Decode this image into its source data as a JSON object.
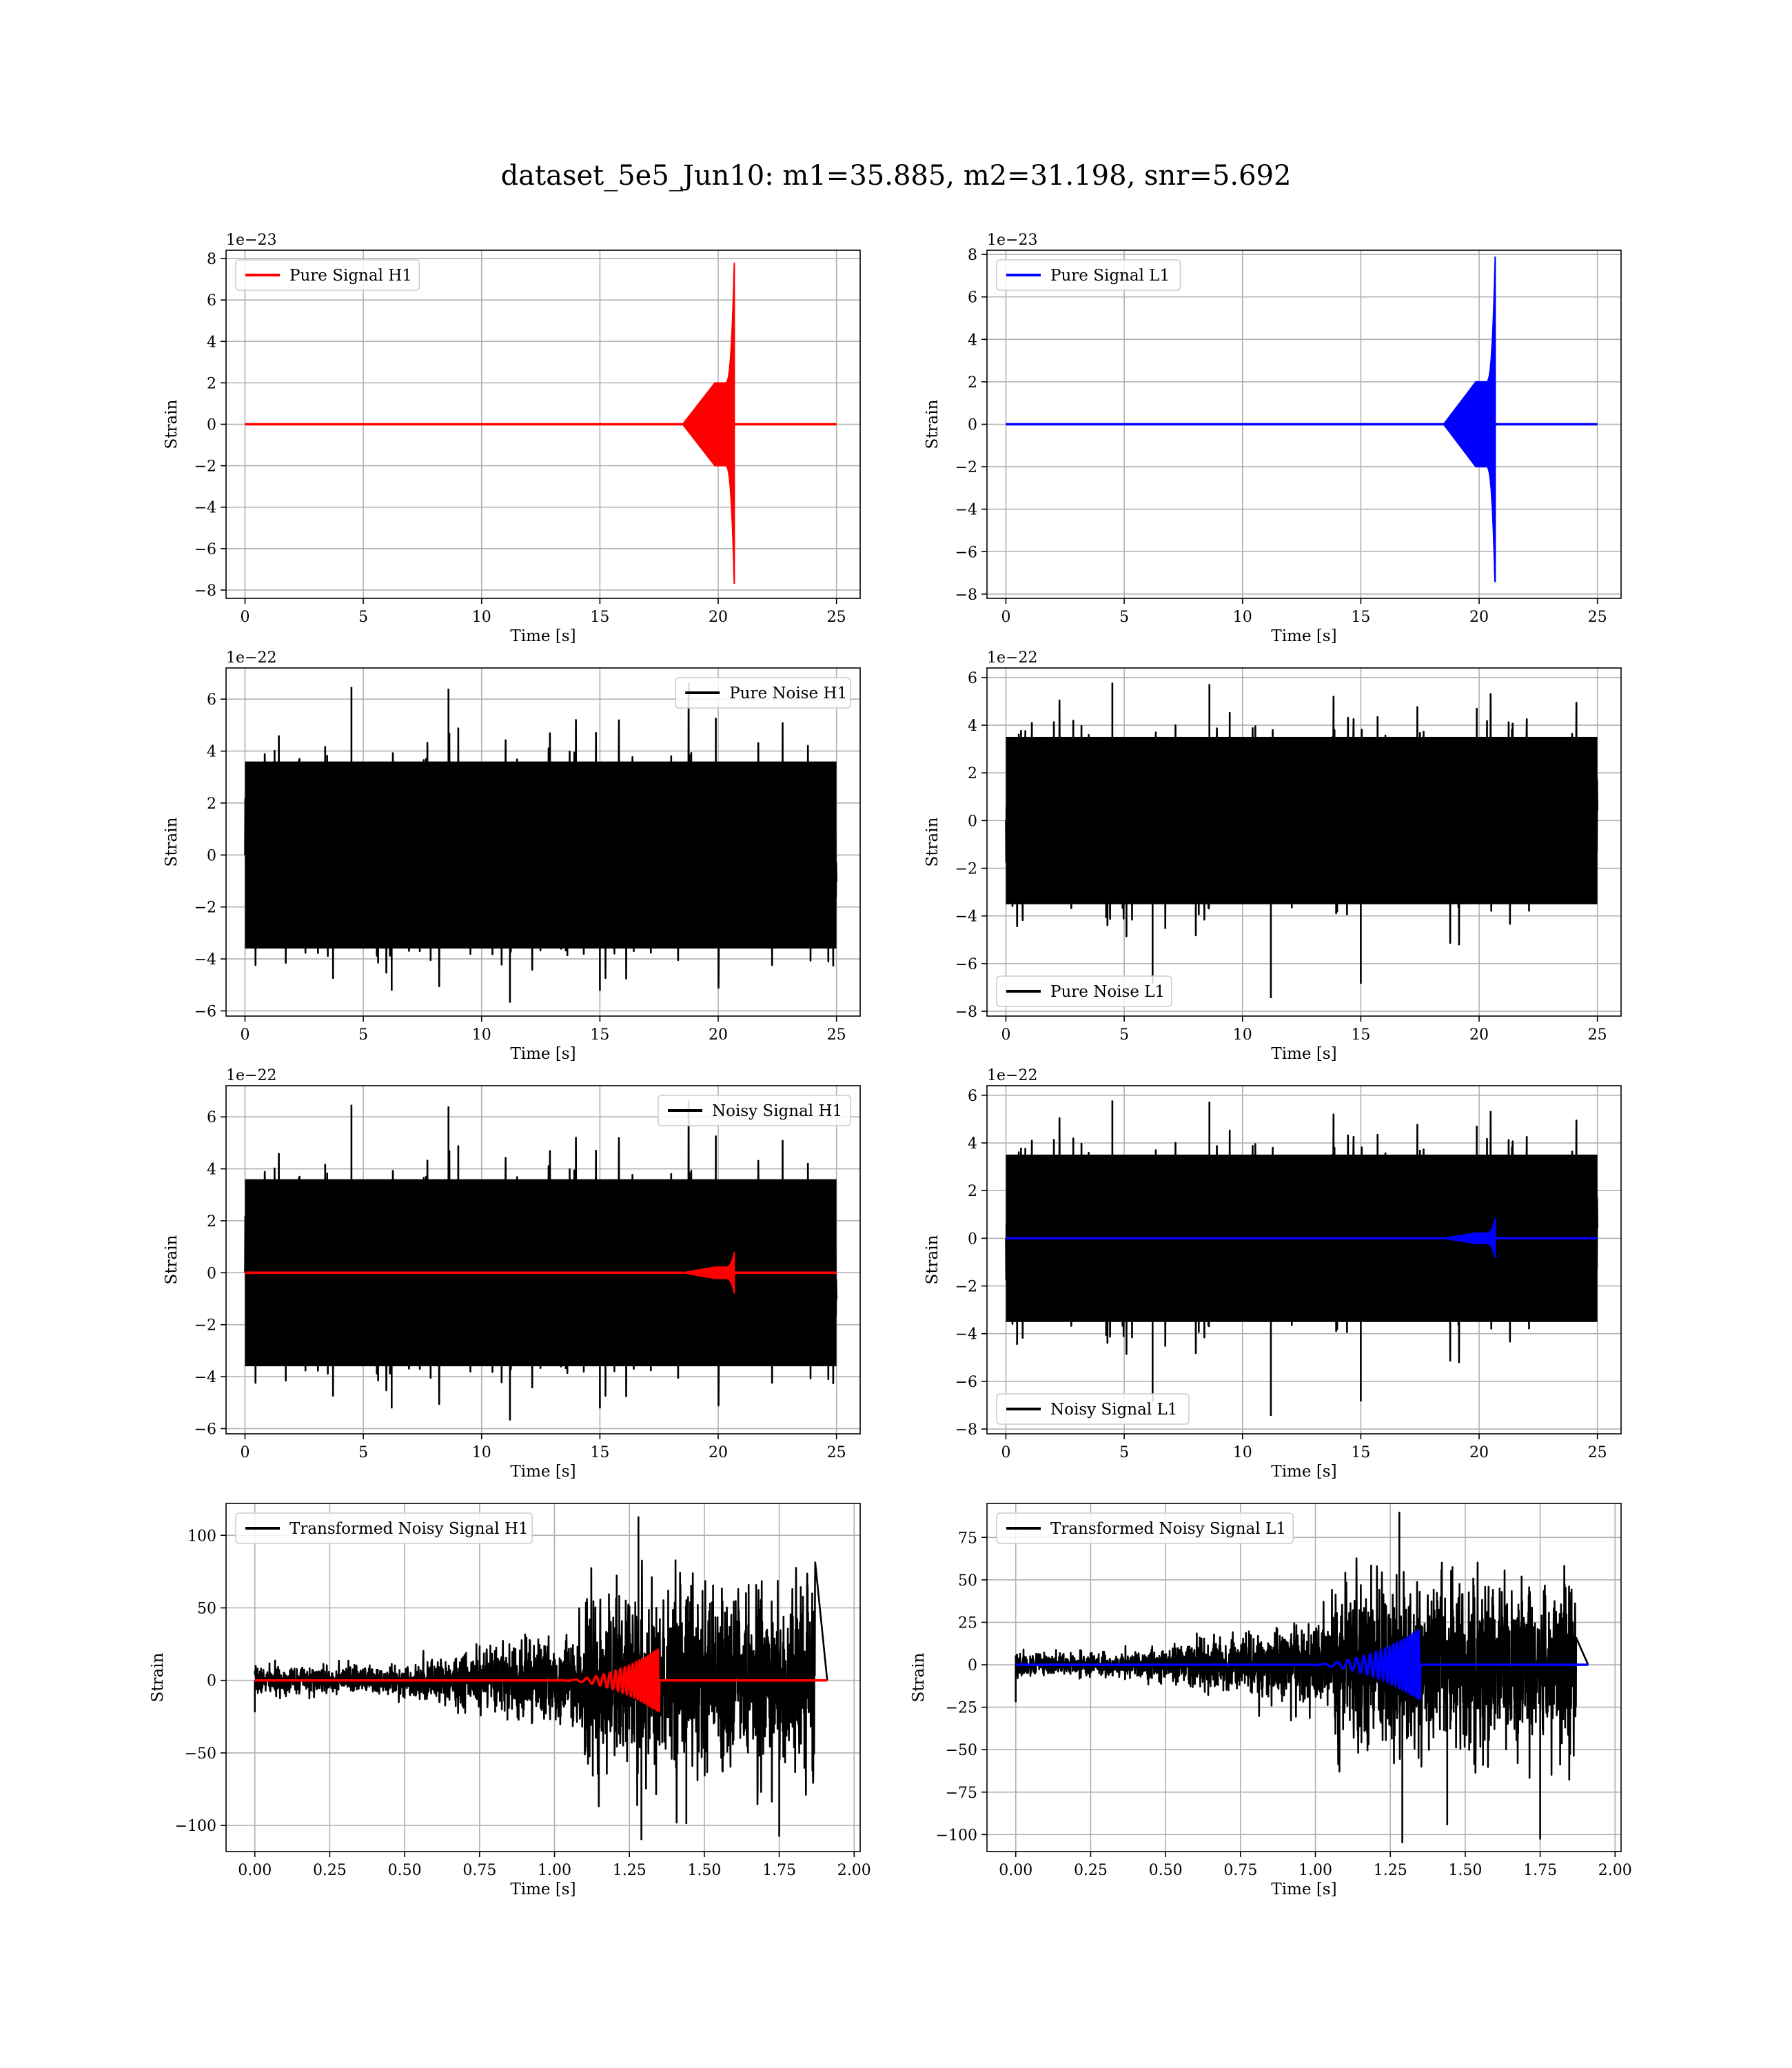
{
  "figure": {
    "title": "dataset_5e5_Jun10: m1=35.885, m2=31.198, snr=5.692",
    "colors": {
      "black": "#000000",
      "red": "#ff0000",
      "blue": "#0000ff",
      "grid": "#b0b0b0"
    }
  },
  "chart_data": [
    {
      "type": "line",
      "id": "pure-signal-h1",
      "title": "",
      "xlabel": "Time [s]",
      "ylabel": "Strain",
      "offset_label": "1e−23",
      "xlim": [
        -0.8,
        26
      ],
      "ylim": [
        -8.4,
        8.4
      ],
      "xticks": [
        0,
        5,
        10,
        15,
        20,
        25
      ],
      "yticks": [
        -8,
        -6,
        -4,
        -2,
        0,
        2,
        4,
        6,
        8
      ],
      "legend": {
        "position": "upper-left"
      },
      "series": [
        {
          "name": "Pure Signal H1",
          "color": "#ff0000",
          "kind": "chirp",
          "x": [
            0,
            25
          ],
          "chirp": {
            "start": 18.5,
            "merger": 20.68,
            "peak_pos": 7.8,
            "peak_neg": -7.7,
            "plateau": 2.0
          }
        }
      ]
    },
    {
      "type": "line",
      "id": "pure-signal-l1",
      "title": "",
      "xlabel": "Time [s]",
      "ylabel": "Strain",
      "offset_label": "1e−23",
      "xlim": [
        -0.8,
        26
      ],
      "ylim": [
        -8.2,
        8.2
      ],
      "xticks": [
        0,
        5,
        10,
        15,
        20,
        25
      ],
      "yticks": [
        -8,
        -6,
        -4,
        -2,
        0,
        2,
        4,
        6,
        8
      ],
      "legend": {
        "position": "upper-left"
      },
      "series": [
        {
          "name": "Pure Signal L1",
          "color": "#0000ff",
          "kind": "chirp",
          "x": [
            0,
            25
          ],
          "chirp": {
            "start": 18.5,
            "merger": 20.68,
            "peak_pos": 7.9,
            "peak_neg": -7.4,
            "plateau": 2.0
          }
        }
      ]
    },
    {
      "type": "line",
      "id": "pure-noise-h1",
      "title": "",
      "xlabel": "Time [s]",
      "ylabel": "Strain",
      "offset_label": "1e−22",
      "xlim": [
        -0.8,
        26
      ],
      "ylim": [
        -6.2,
        7.2
      ],
      "xticks": [
        0,
        5,
        10,
        15,
        20,
        25
      ],
      "yticks": [
        -6,
        -4,
        -2,
        0,
        2,
        4,
        6
      ],
      "legend": {
        "position": "upper-right"
      },
      "series": [
        {
          "name": "Pure Noise H1",
          "color": "#000000",
          "kind": "noise",
          "x": [
            0,
            25
          ],
          "noise": {
            "band": [
              -4.0,
              4.0
            ],
            "max": 6.6,
            "min": -5.8,
            "seed": 11
          }
        }
      ]
    },
    {
      "type": "line",
      "id": "pure-noise-l1",
      "title": "",
      "xlabel": "Time [s]",
      "ylabel": "Strain",
      "offset_label": "1e−22",
      "xlim": [
        -0.8,
        26
      ],
      "ylim": [
        -8.2,
        6.4
      ],
      "xticks": [
        0,
        5,
        10,
        15,
        20,
        25
      ],
      "yticks": [
        -8,
        -6,
        -4,
        -2,
        0,
        2,
        4,
        6
      ],
      "legend": {
        "position": "lower-left"
      },
      "series": [
        {
          "name": "Pure Noise L1",
          "color": "#000000",
          "kind": "noise",
          "x": [
            0,
            25
          ],
          "noise": {
            "band": [
              -3.9,
              3.9
            ],
            "max": 5.9,
            "min": -7.6,
            "seed": 23
          }
        }
      ]
    },
    {
      "type": "line",
      "id": "noisy-signal-h1",
      "title": "",
      "xlabel": "Time [s]",
      "ylabel": "Strain",
      "offset_label": "1e−22",
      "xlim": [
        -0.8,
        26
      ],
      "ylim": [
        -6.2,
        7.2
      ],
      "xticks": [
        0,
        5,
        10,
        15,
        20,
        25
      ],
      "yticks": [
        -6,
        -4,
        -2,
        0,
        2,
        4,
        6
      ],
      "legend": {
        "position": "upper-right"
      },
      "series": [
        {
          "name": "Noisy Signal H1",
          "color": "#000000",
          "kind": "noise",
          "x": [
            0,
            25
          ],
          "noise": {
            "band": [
              -4.0,
              4.0
            ],
            "max": 6.6,
            "min": -5.8,
            "seed": 11
          }
        },
        {
          "name": "",
          "color": "#ff0000",
          "kind": "chirp",
          "x": [
            0,
            25
          ],
          "chirp": {
            "start": 18.5,
            "merger": 20.68,
            "peak_pos": 0.8,
            "peak_neg": -0.8,
            "plateau": 0.22
          }
        }
      ]
    },
    {
      "type": "line",
      "id": "noisy-signal-l1",
      "title": "",
      "xlabel": "Time [s]",
      "ylabel": "Strain",
      "offset_label": "1e−22",
      "xlim": [
        -0.8,
        26
      ],
      "ylim": [
        -8.2,
        6.4
      ],
      "xticks": [
        0,
        5,
        10,
        15,
        20,
        25
      ],
      "yticks": [
        -8,
        -6,
        -4,
        -2,
        0,
        2,
        4,
        6
      ],
      "legend": {
        "position": "lower-left"
      },
      "series": [
        {
          "name": "Noisy Signal L1",
          "color": "#000000",
          "kind": "noise",
          "x": [
            0,
            25
          ],
          "noise": {
            "band": [
              -3.9,
              3.9
            ],
            "max": 5.9,
            "min": -7.6,
            "seed": 23
          }
        },
        {
          "name": "",
          "color": "#0000ff",
          "kind": "chirp",
          "x": [
            0,
            25
          ],
          "chirp": {
            "start": 18.5,
            "merger": 20.68,
            "peak_pos": 0.85,
            "peak_neg": -0.8,
            "plateau": 0.22
          }
        }
      ]
    },
    {
      "type": "line",
      "id": "transformed-noisy-signal-h1",
      "title": "",
      "xlabel": "Time [s]",
      "ylabel": "Strain",
      "offset_label": "",
      "xlim": [
        -0.096,
        2.02
      ],
      "ylim": [
        -118,
        122
      ],
      "xticks": [
        0.0,
        0.25,
        0.5,
        0.75,
        1.0,
        1.25,
        1.5,
        1.75,
        2.0
      ],
      "xtick_labels": [
        "0.00",
        "0.25",
        "0.50",
        "0.75",
        "1.00",
        "1.25",
        "1.50",
        "1.75",
        "2.00"
      ],
      "yticks": [
        -100,
        -50,
        0,
        50,
        100
      ],
      "legend": {
        "position": "upper-left"
      },
      "series": [
        {
          "name": "Transformed Noisy Signal H1",
          "color": "#000000",
          "kind": "whitened",
          "x": [
            0,
            1.91
          ],
          "whitened": {
            "quiet": 8,
            "ramp_start": 0.45,
            "loud_start": 1.1,
            "loud": 55,
            "max": 113,
            "min": -110,
            "end": 1.87,
            "seed": 7
          }
        },
        {
          "name": "",
          "color": "#ff0000",
          "kind": "wchirp",
          "x": [
            0,
            1.91
          ],
          "wchirp": {
            "start": 1.0,
            "merger": 1.35,
            "peak": 22
          }
        }
      ]
    },
    {
      "type": "line",
      "id": "transformed-noisy-signal-l1",
      "title": "",
      "xlabel": "Time [s]",
      "ylabel": "Strain",
      "offset_label": "",
      "xlim": [
        -0.096,
        2.02
      ],
      "ylim": [
        -110,
        95
      ],
      "xticks": [
        0.0,
        0.25,
        0.5,
        0.75,
        1.0,
        1.25,
        1.5,
        1.75,
        2.0
      ],
      "xtick_labels": [
        "0.00",
        "0.25",
        "0.50",
        "0.75",
        "1.00",
        "1.25",
        "1.50",
        "1.75",
        "2.00"
      ],
      "yticks": [
        -100,
        -75,
        -50,
        -25,
        0,
        25,
        50,
        75
      ],
      "legend": {
        "position": "upper-left"
      },
      "series": [
        {
          "name": "Transformed Noisy Signal L1",
          "color": "#000000",
          "kind": "whitened",
          "x": [
            0,
            1.91
          ],
          "whitened": {
            "quiet": 6,
            "ramp_start": 0.35,
            "loud_start": 1.05,
            "loud": 40,
            "max": 90,
            "min": -105,
            "end": 1.87,
            "seed": 19
          }
        },
        {
          "name": "",
          "color": "#0000ff",
          "kind": "wchirp",
          "x": [
            0,
            1.91
          ],
          "wchirp": {
            "start": 0.95,
            "merger": 1.35,
            "peak": 21
          }
        }
      ]
    }
  ]
}
